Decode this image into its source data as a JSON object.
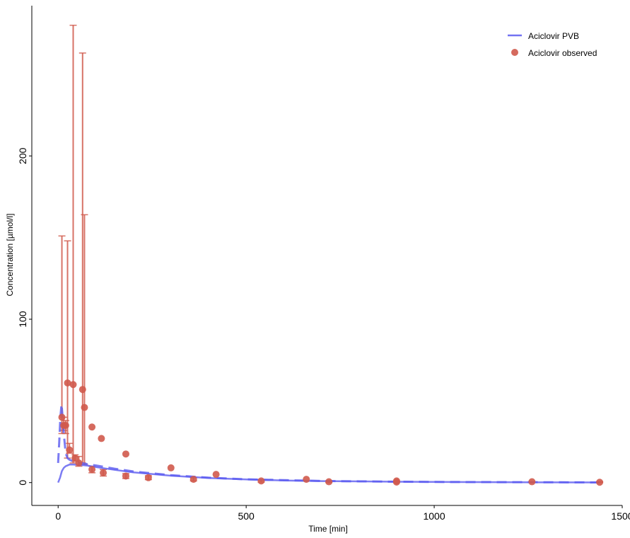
{
  "chart_data": {
    "type": "line",
    "xlabel": "Time [min]",
    "ylabel": "Concentration [µmol/l]",
    "xlim": [
      -70,
      1500
    ],
    "ylim": [
      -14,
      292
    ],
    "x_ticks": [
      0,
      500,
      1000,
      1500
    ],
    "y_ticks": [
      0,
      100,
      200
    ],
    "grid": false,
    "legend": {
      "placement": "top-right",
      "entries": [
        {
          "label": "Aciclovir PVB",
          "kind": "line"
        },
        {
          "label": "Aciclovir observed",
          "kind": "point"
        }
      ]
    },
    "colors": {
      "simulated": "#5b5bf0",
      "observed": "#d05a4c"
    },
    "simulated_solid": {
      "x": [
        0,
        5,
        10,
        15,
        20,
        30,
        40,
        60,
        80,
        100,
        150,
        200,
        300,
        400,
        500,
        600,
        700,
        900,
        1100,
        1300,
        1440
      ],
      "y": [
        0,
        3,
        7,
        9,
        10,
        11,
        11,
        10.8,
        10.3,
        9.5,
        7.8,
        6.3,
        4.2,
        2.8,
        1.9,
        1.3,
        0.9,
        0.5,
        0.3,
        0.15,
        0.1
      ]
    },
    "simulated_dashed": {
      "x": [
        0,
        3,
        6,
        9,
        12,
        15,
        20,
        25,
        30,
        40,
        60,
        80,
        100,
        150,
        200,
        300,
        400,
        500,
        700,
        900,
        1100,
        1300,
        1440
      ],
      "y": [
        12,
        25,
        40,
        48,
        40,
        30,
        18,
        15,
        14,
        13,
        12,
        11.2,
        10.5,
        8.5,
        6.8,
        4.5,
        3,
        2,
        1,
        0.5,
        0.3,
        0.2,
        0.1
      ]
    },
    "observed": [
      {
        "x": 10,
        "y": 40,
        "lo": 30,
        "hi": 151
      },
      {
        "x": 15,
        "y": 35,
        "lo": 32,
        "hi": 40
      },
      {
        "x": 20,
        "y": 35,
        "lo": 30,
        "hi": 38
      },
      {
        "x": 25,
        "y": 61,
        "lo": 15,
        "hi": 148
      },
      {
        "x": 30,
        "y": 20,
        "lo": 18,
        "hi": 24
      },
      {
        "x": 40,
        "y": 60,
        "lo": 12,
        "hi": 280
      },
      {
        "x": 45,
        "y": 15,
        "lo": 13,
        "hi": 17
      },
      {
        "x": 55,
        "y": 12,
        "lo": 10,
        "hi": 16
      },
      {
        "x": 65,
        "y": 57,
        "lo": 12,
        "hi": 263
      },
      {
        "x": 70,
        "y": 46,
        "lo": 11,
        "hi": 164
      },
      {
        "x": 90,
        "y": 34,
        "lo": null,
        "hi": null
      },
      {
        "x": 90,
        "y": 8,
        "lo": 6,
        "hi": 10
      },
      {
        "x": 115,
        "y": 27,
        "lo": null,
        "hi": null
      },
      {
        "x": 120,
        "y": 6,
        "lo": 4,
        "hi": 8
      },
      {
        "x": 180,
        "y": 17.5,
        "lo": null,
        "hi": null
      },
      {
        "x": 180,
        "y": 4,
        "lo": 2.5,
        "hi": 5.5
      },
      {
        "x": 240,
        "y": 3,
        "lo": 1.8,
        "hi": 4.2
      },
      {
        "x": 300,
        "y": 9,
        "lo": null,
        "hi": null
      },
      {
        "x": 360,
        "y": 2,
        "lo": 1,
        "hi": 3
      },
      {
        "x": 420,
        "y": 5,
        "lo": null,
        "hi": null
      },
      {
        "x": 540,
        "y": 1,
        "lo": 0.3,
        "hi": 1.6
      },
      {
        "x": 660,
        "y": 2,
        "lo": null,
        "hi": null
      },
      {
        "x": 720,
        "y": 0.5,
        "lo": 0,
        "hi": 1
      },
      {
        "x": 900,
        "y": 1,
        "lo": null,
        "hi": null
      },
      {
        "x": 900,
        "y": 0.3,
        "lo": 0,
        "hi": 0.8
      },
      {
        "x": 1260,
        "y": 0.5,
        "lo": null,
        "hi": null
      },
      {
        "x": 1440,
        "y": 0.2,
        "lo": 0,
        "hi": 0.6
      }
    ]
  }
}
